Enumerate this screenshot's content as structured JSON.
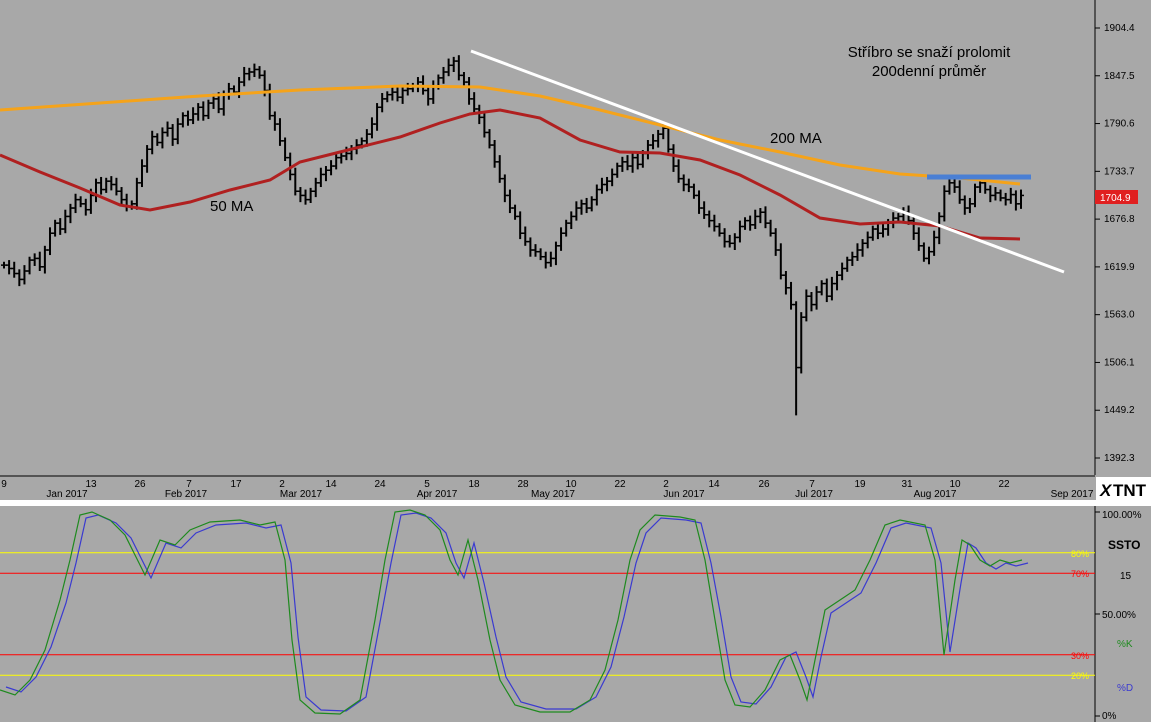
{
  "chart_data": [
    {
      "type": "ohlc",
      "annotations": {
        "title_line1": "Stříbro se snaží prolomit",
        "title_line2": "200denní průměr",
        "ma200_label": "200 MA",
        "ma50_label": "50 MA"
      },
      "last_price_label": "1704.9",
      "y_ticks": [
        1904.4,
        1847.5,
        1790.6,
        1733.7,
        1676.8,
        1619.9,
        1563.0,
        1506.1,
        1449.2,
        1392.3
      ],
      "y_tick_labels": [
        "1904.4",
        "1847.5",
        "1790.6",
        "1733.7",
        "1676.8",
        "1619.9",
        "1563.0",
        "1506.1",
        "1449.2",
        "1392.3"
      ],
      "x_day_labels": [
        "9",
        "13",
        "26",
        "7",
        "17",
        "2",
        "14",
        "24",
        "5",
        "18",
        "28",
        "10",
        "22",
        "2",
        "14",
        "26",
        "7",
        "19",
        "31",
        "10",
        "22"
      ],
      "x_month_labels": [
        "Jan 2017",
        "Feb 2017",
        "Mar 2017",
        "Apr 2017",
        "May 2017",
        "Jun 2017",
        "Jul 2017",
        "Aug 2017",
        "Sep 2017"
      ],
      "ylim": [
        1360,
        1935
      ],
      "close": [
        1622,
        1618,
        1612,
        1605,
        1615,
        1628,
        1630,
        1620,
        1640,
        1660,
        1672,
        1665,
        1680,
        1690,
        1700,
        1695,
        1688,
        1705,
        1720,
        1712,
        1722,
        1718,
        1710,
        1700,
        1692,
        1695,
        1720,
        1740,
        1760,
        1775,
        1768,
        1780,
        1785,
        1772,
        1790,
        1800,
        1795,
        1802,
        1810,
        1800,
        1815,
        1820,
        1808,
        1825,
        1832,
        1828,
        1840,
        1850,
        1852,
        1855,
        1848,
        1830,
        1800,
        1790,
        1770,
        1750,
        1730,
        1710,
        1705,
        1700,
        1710,
        1720,
        1730,
        1735,
        1740,
        1750,
        1752,
        1755,
        1760,
        1765,
        1770,
        1778,
        1790,
        1810,
        1820,
        1825,
        1828,
        1822,
        1830,
        1832,
        1835,
        1840,
        1830,
        1820,
        1835,
        1845,
        1852,
        1860,
        1865,
        1848,
        1840,
        1820,
        1808,
        1798,
        1780,
        1765,
        1745,
        1725,
        1705,
        1690,
        1680,
        1660,
        1650,
        1640,
        1638,
        1632,
        1625,
        1630,
        1645,
        1660,
        1672,
        1680,
        1690,
        1695,
        1690,
        1700,
        1712,
        1718,
        1722,
        1730,
        1740,
        1745,
        1740,
        1750,
        1742,
        1755,
        1765,
        1770,
        1778,
        1785,
        1760,
        1740,
        1725,
        1718,
        1715,
        1705,
        1690,
        1682,
        1675,
        1668,
        1660,
        1650,
        1648,
        1655,
        1668,
        1675,
        1670,
        1680,
        1685,
        1672,
        1660,
        1640,
        1610,
        1595,
        1575,
        1500,
        1560,
        1585,
        1575,
        1590,
        1600,
        1585,
        1600,
        1610,
        1618,
        1628,
        1632,
        1640,
        1648,
        1655,
        1665,
        1660,
        1665,
        1672,
        1678,
        1680,
        1685,
        1675,
        1660,
        1645,
        1630,
        1638,
        1655,
        1680,
        1710,
        1720,
        1715,
        1700,
        1690,
        1695,
        1715,
        1720,
        1712,
        1705,
        1708,
        1702,
        1700,
        1706,
        1695,
        1705
      ]
    },
    {
      "type": "line",
      "indicator": "SSTO",
      "period_label": "15",
      "legend": [
        "%K",
        "%D"
      ],
      "y_tick_labels": [
        "100.00%",
        "50.00%",
        "0%"
      ],
      "ylim": [
        0,
        100
      ],
      "levels": [
        {
          "value": 80,
          "label": "80%",
          "color": "#ffff00"
        },
        {
          "value": 70,
          "label": "70%",
          "color": "#ff0000"
        },
        {
          "value": 30,
          "label": "30%",
          "color": "#ff0000"
        },
        {
          "value": 20,
          "label": "20%",
          "color": "#ffff00"
        }
      ]
    }
  ],
  "colors": {
    "background": "#a8a8a8",
    "price_bars": "#000000",
    "ma200": "#f5a31a",
    "ma50": "#b02020",
    "trendline": "#ffffff",
    "resistance": "#4a7fd4",
    "k_line": "#1e8a1e",
    "d_line": "#3a3ad0",
    "price_flag": "#e02020"
  },
  "logo_text": "TNT"
}
